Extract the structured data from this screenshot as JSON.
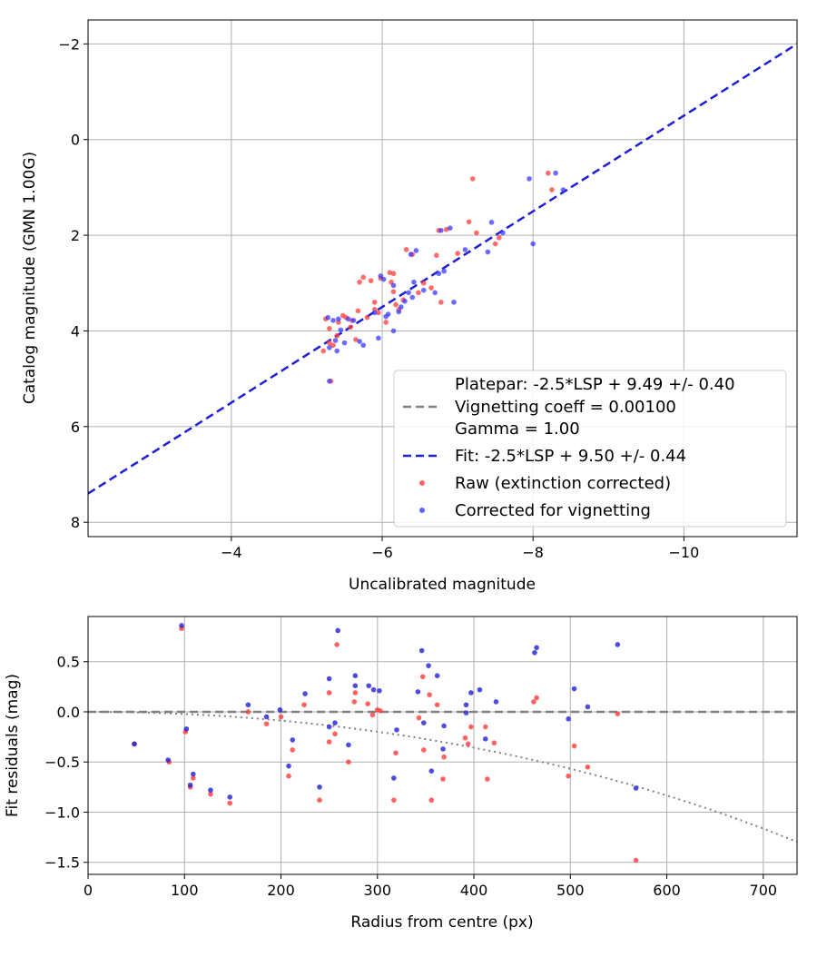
{
  "chart_data": [
    {
      "type": "scatter",
      "name": "calibration",
      "xlabel": "Uncalibrated magnitude",
      "ylabel": "Catalog magnitude (GMN 1.00G)",
      "xlim": [
        -2.1,
        -11.5
      ],
      "ylim": [
        8.3,
        -2.5
      ],
      "xticks": [
        -4,
        -6,
        -8,
        -10
      ],
      "xtick_labels": [
        "−4",
        "−6",
        "−8",
        "−10"
      ],
      "yticks": [
        -2,
        0,
        2,
        4,
        6,
        8
      ],
      "ytick_labels": [
        "−2",
        "0",
        "2",
        "4",
        "6",
        "8"
      ],
      "grid": true,
      "legend_position": "lower-right",
      "legend": {
        "platepar": "Platepar: -2.5*LSP + 9.49 +/- 0.40",
        "vignetting": "Vignetting coeff = 0.00100",
        "gamma": "Gamma = 1.00",
        "fit": "Fit: -2.5*LSP + 9.50 +/- 0.44",
        "raw": "Raw (extinction corrected)",
        "corrected": "Corrected for vignetting"
      },
      "fit_line": {
        "slope": 1.0,
        "intercept": 9.5,
        "color": "#1f1fd6"
      },
      "series": [
        {
          "name": "Raw (extinction corrected)",
          "color": "#ff3b3b",
          "points": [
            [
              -5.25,
              3.75
            ],
            [
              -5.3,
              4.25
            ],
            [
              -5.22,
              4.42
            ],
            [
              -5.3,
              3.95
            ],
            [
              -5.35,
              4.3
            ],
            [
              -5.32,
              5.05
            ],
            [
              -5.4,
              4.1
            ],
            [
              -5.42,
              3.82
            ],
            [
              -5.52,
              3.72
            ],
            [
              -5.6,
              3.78
            ],
            [
              -5.65,
              4.18
            ],
            [
              -5.68,
              3.58
            ],
            [
              -5.7,
              2.98
            ],
            [
              -5.75,
              2.88
            ],
            [
              -5.8,
              3.72
            ],
            [
              -5.85,
              2.95
            ],
            [
              -5.9,
              3.55
            ],
            [
              -5.9,
              3.4
            ],
            [
              -5.95,
              3.62
            ],
            [
              -5.98,
              2.9
            ],
            [
              -6.1,
              2.78
            ],
            [
              -6.12,
              2.98
            ],
            [
              -6.15,
              2.8
            ],
            [
              -6.15,
              3.18
            ],
            [
              -6.18,
              3.45
            ],
            [
              -6.22,
              3.55
            ],
            [
              -6.28,
              3.35
            ],
            [
              -6.32,
              2.3
            ],
            [
              -6.4,
              2.4
            ],
            [
              -6.48,
              3.2
            ],
            [
              -6.65,
              3.1
            ],
            [
              -6.72,
              2.42
            ],
            [
              -6.75,
              1.9
            ],
            [
              -6.78,
              3.4
            ],
            [
              -6.85,
              1.88
            ],
            [
              -7.0,
              2.38
            ],
            [
              -7.15,
              1.72
            ],
            [
              -7.2,
              0.82
            ],
            [
              -7.25,
              1.95
            ],
            [
              -7.55,
              2.05
            ],
            [
              -7.5,
              2.18
            ],
            [
              -8.2,
              0.7
            ],
            [
              -8.25,
              1.05
            ],
            [
              -5.48,
              3.68
            ],
            [
              -5.58,
              3.92
            ],
            [
              -6.05,
              3.82
            ],
            [
              -6.55,
              3.0
            ]
          ]
        },
        {
          "name": "Corrected for vignetting",
          "color": "#3a3aff",
          "points": [
            [
              -5.28,
              3.72
            ],
            [
              -5.3,
              4.35
            ],
            [
              -5.35,
              3.78
            ],
            [
              -5.38,
              4.2
            ],
            [
              -5.4,
              4.42
            ],
            [
              -5.3,
              5.05
            ],
            [
              -5.42,
              3.75
            ],
            [
              -5.45,
              3.98
            ],
            [
              -5.5,
              4.25
            ],
            [
              -5.62,
              3.78
            ],
            [
              -5.7,
              4.22
            ],
            [
              -5.75,
              4.3
            ],
            [
              -5.9,
              3.62
            ],
            [
              -5.95,
              4.15
            ],
            [
              -5.98,
              2.85
            ],
            [
              -6.02,
              2.92
            ],
            [
              -6.08,
              3.65
            ],
            [
              -6.15,
              3.05
            ],
            [
              -6.15,
              4.0
            ],
            [
              -6.22,
              3.6
            ],
            [
              -6.25,
              3.5
            ],
            [
              -6.3,
              3.38
            ],
            [
              -6.35,
              3.2
            ],
            [
              -6.38,
              2.4
            ],
            [
              -6.4,
              3.3
            ],
            [
              -6.42,
              2.98
            ],
            [
              -6.45,
              2.32
            ],
            [
              -6.55,
              3.15
            ],
            [
              -6.7,
              3.2
            ],
            [
              -6.78,
              1.9
            ],
            [
              -6.82,
              2.75
            ],
            [
              -6.9,
              1.85
            ],
            [
              -6.95,
              3.4
            ],
            [
              -7.1,
              2.3
            ],
            [
              -7.4,
              2.35
            ],
            [
              -7.45,
              1.73
            ],
            [
              -7.6,
              1.95
            ],
            [
              -7.95,
              0.82
            ],
            [
              -8.0,
              2.18
            ],
            [
              -8.3,
              0.7
            ],
            [
              -8.4,
              1.05
            ],
            [
              -5.55,
              3.75
            ],
            [
              -6.05,
              3.7
            ],
            [
              -6.75,
              2.8
            ]
          ]
        }
      ]
    },
    {
      "type": "scatter",
      "name": "residuals",
      "xlabel": "Radius from centre (px)",
      "ylabel": "Fit residuals (mag)",
      "xlim": [
        0,
        735
      ],
      "ylim": [
        -1.62,
        0.95
      ],
      "xticks": [
        0,
        100,
        200,
        300,
        400,
        500,
        600,
        700
      ],
      "xtick_labels": [
        "0",
        "100",
        "200",
        "300",
        "400",
        "500",
        "600",
        "700"
      ],
      "yticks": [
        0.5,
        0.0,
        -0.5,
        -1.0,
        -1.5
      ],
      "ytick_labels": [
        "0.5",
        "0.0",
        "−0.5",
        "−1.0",
        "−1.5"
      ],
      "grid": true,
      "zero_line": {
        "y": 0.0,
        "color": "#808080"
      },
      "vignetting_curve": {
        "coeff": 0.001,
        "x_max": 735,
        "color": "#808080"
      },
      "series": [
        {
          "name": "Raw (extinction corrected)",
          "color": "#ff3b3b",
          "points": [
            [
              48,
              -0.32
            ],
            [
              84,
              -0.5
            ],
            [
              97,
              0.83
            ],
            [
              101,
              -0.2
            ],
            [
              106,
              -0.75
            ],
            [
              109,
              -0.66
            ],
            [
              127,
              -0.82
            ],
            [
              147,
              -0.91
            ],
            [
              166,
              0.0
            ],
            [
              185,
              -0.12
            ],
            [
              200,
              -0.05
            ],
            [
              208,
              -0.64
            ],
            [
              212,
              -0.38
            ],
            [
              224,
              0.07
            ],
            [
              240,
              -0.88
            ],
            [
              250,
              0.19
            ],
            [
              250,
              -0.3
            ],
            [
              256,
              -0.22
            ],
            [
              258,
              0.67
            ],
            [
              270,
              -0.5
            ],
            [
              276,
              0.1
            ],
            [
              277,
              0.19
            ],
            [
              290,
              0.08
            ],
            [
              295,
              -0.03
            ],
            [
              300,
              0.02
            ],
            [
              303,
              0.01
            ],
            [
              317,
              -0.88
            ],
            [
              319,
              -0.41
            ],
            [
              343,
              -0.06
            ],
            [
              347,
              0.35
            ],
            [
              348,
              -0.38
            ],
            [
              354,
              0.17
            ],
            [
              356,
              -0.88
            ],
            [
              362,
              0.07
            ],
            [
              368,
              -0.67
            ],
            [
              369,
              -0.45
            ],
            [
              391,
              -0.26
            ],
            [
              394,
              -0.32
            ],
            [
              397,
              -0.15
            ],
            [
              412,
              -0.15
            ],
            [
              414,
              -0.67
            ],
            [
              421,
              -0.31
            ],
            [
              462,
              0.1
            ],
            [
              465,
              0.14
            ],
            [
              498,
              -0.64
            ],
            [
              504,
              -0.34
            ],
            [
              518,
              -0.55
            ],
            [
              549,
              -0.02
            ],
            [
              568,
              -1.48
            ]
          ]
        },
        {
          "name": "Corrected for vignetting",
          "color": "#1f1fd6",
          "points": [
            [
              48,
              -0.32
            ],
            [
              83,
              -0.48
            ],
            [
              97,
              0.86
            ],
            [
              102,
              -0.17
            ],
            [
              106,
              -0.73
            ],
            [
              109,
              -0.62
            ],
            [
              127,
              -0.78
            ],
            [
              147,
              -0.85
            ],
            [
              166,
              0.07
            ],
            [
              185,
              -0.05
            ],
            [
              199,
              0.02
            ],
            [
              208,
              -0.54
            ],
            [
              212,
              -0.28
            ],
            [
              225,
              0.18
            ],
            [
              240,
              -0.75
            ],
            [
              250,
              0.33
            ],
            [
              250,
              -0.15
            ],
            [
              256,
              -0.11
            ],
            [
              259,
              0.81
            ],
            [
              270,
              -0.33
            ],
            [
              277,
              0.26
            ],
            [
              277,
              0.36
            ],
            [
              291,
              0.26
            ],
            [
              296,
              0.22
            ],
            [
              302,
              0.21
            ],
            [
              317,
              -0.66
            ],
            [
              320,
              -0.18
            ],
            [
              342,
              0.2
            ],
            [
              346,
              0.61
            ],
            [
              348,
              -0.11
            ],
            [
              353,
              0.46
            ],
            [
              356,
              -0.59
            ],
            [
              362,
              0.36
            ],
            [
              368,
              -0.37
            ],
            [
              369,
              -0.14
            ],
            [
              392,
              0.07
            ],
            [
              392,
              -0.01
            ],
            [
              397,
              0.19
            ],
            [
              406,
              0.22
            ],
            [
              412,
              -0.27
            ],
            [
              423,
              0.1
            ],
            [
              463,
              0.59
            ],
            [
              465,
              0.64
            ],
            [
              498,
              -0.07
            ],
            [
              504,
              0.23
            ],
            [
              518,
              0.05
            ],
            [
              549,
              0.67
            ],
            [
              568,
              -0.76
            ]
          ]
        }
      ]
    }
  ]
}
